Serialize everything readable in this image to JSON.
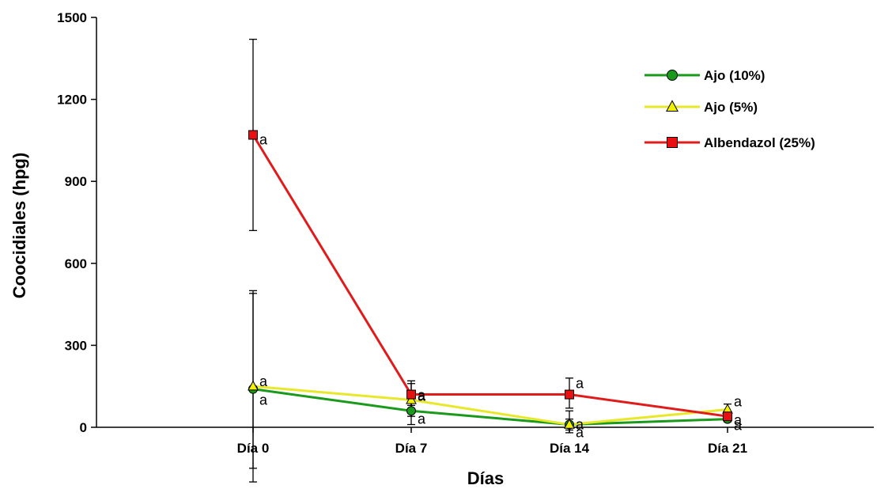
{
  "chart_data": {
    "type": "line",
    "xlabel": "Días",
    "ylabel": "Coocidiales (hpg)",
    "categories": [
      "Día 0",
      "Día 7",
      "Día 14",
      "Día 21"
    ],
    "ylim": [
      0,
      1500
    ],
    "yticks": [
      0,
      300,
      600,
      900,
      1200,
      1500
    ],
    "grid": false,
    "legend_position": "top-right",
    "series": [
      {
        "name": "Ajo (10%)",
        "color": "#1a9a1a",
        "marker": "circle",
        "marker_fill": "#1a9a1a",
        "values": [
          140,
          60,
          10,
          30
        ],
        "error": [
          {
            "low": -150,
            "high": 500
          },
          {
            "low": 10,
            "high": 110
          },
          {
            "low": -10,
            "high": 30
          },
          {
            "low": 20,
            "high": 40
          }
        ],
        "letters": [
          "a",
          "a",
          "a",
          "a"
        ]
      },
      {
        "name": "Ajo (5%)",
        "color": "#e8e82a",
        "marker": "triangle",
        "marker_fill": "#f0f000",
        "values": [
          150,
          100,
          10,
          65
        ],
        "error": [
          {
            "low": -200,
            "high": 490
          },
          {
            "low": 40,
            "high": 160
          },
          {
            "low": -20,
            "high": 60
          },
          {
            "low": 30,
            "high": 85
          }
        ],
        "letters": [
          "a",
          "a",
          "a",
          "a"
        ]
      },
      {
        "name": "Albendazol (25%)",
        "color": "#e01b1b",
        "marker": "square",
        "marker_fill": "#e81010",
        "values": [
          1070,
          120,
          120,
          40
        ],
        "error": [
          {
            "low": 720,
            "high": 1420
          },
          {
            "low": 80,
            "high": 170
          },
          {
            "low": 70,
            "high": 180
          },
          {
            "low": 25,
            "high": 55
          }
        ],
        "letters": [
          "a",
          "a",
          "a",
          "a"
        ]
      }
    ]
  }
}
